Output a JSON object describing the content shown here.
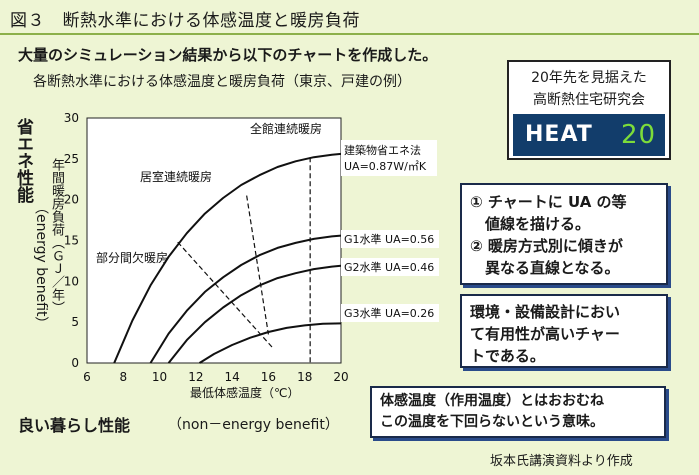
{
  "figure_title": "図３　断熱水準における体感温度と暖房負荷",
  "lead_text": "大量のシミュレーション結果から以下のチャートを作成した。",
  "chart_data": {
    "type": "line",
    "title": "各断熱水準における体感温度と暖房負荷（東京、戸建の例）",
    "xlabel": "最低体感温度（℃）",
    "ylabel": "年間暖房負荷（ＧＪ／年）",
    "xlim": [
      6,
      20
    ],
    "ylim": [
      0,
      30
    ],
    "x_ticks": [
      "6",
      "8",
      "10",
      "12",
      "14",
      "16",
      "18",
      "20"
    ],
    "y_ticks": [
      "0",
      "5",
      "10",
      "15",
      "20",
      "25",
      "30"
    ],
    "grid": false,
    "series": [
      {
        "name": "建築物省エネ法 Uᴀ=0.87W/㎡K",
        "x": [
          7.5,
          8.5,
          9.5,
          10.5,
          11.5,
          12.5,
          13.5,
          14.5,
          15.5,
          16.5,
          17.5,
          18.5,
          19.5,
          20
        ],
        "y": [
          0,
          5.2,
          9.5,
          13.0,
          15.9,
          18.3,
          20.2,
          21.8,
          23.0,
          24.0,
          24.7,
          25.2,
          25.5,
          25.6
        ]
      },
      {
        "name": "G1水準 Uᴀ=0.56",
        "x": [
          9.5,
          10.5,
          11.5,
          12.5,
          13.5,
          14.5,
          15.5,
          16.5,
          17.5,
          18.5,
          19.5,
          20
        ],
        "y": [
          0,
          3.6,
          6.4,
          8.7,
          10.5,
          12.0,
          13.2,
          14.1,
          14.7,
          15.2,
          15.5,
          15.6
        ]
      },
      {
        "name": "G2水準 Uᴀ=0.46",
        "x": [
          10.5,
          11.5,
          12.5,
          13.5,
          14.5,
          15.5,
          16.5,
          17.5,
          18.5,
          19.5,
          20
        ],
        "y": [
          0,
          2.8,
          5.0,
          6.8,
          8.3,
          9.5,
          10.4,
          11.0,
          11.5,
          11.8,
          11.9
        ]
      },
      {
        "name": "G3水準 Uᴀ=0.26",
        "x": [
          12.2,
          13.0,
          14.0,
          15.0,
          16.0,
          17.0,
          18.0,
          19.0,
          20
        ],
        "y": [
          0,
          1.1,
          2.2,
          3.1,
          3.8,
          4.3,
          4.6,
          4.8,
          4.85
        ]
      }
    ],
    "guide_lines": [
      {
        "label": "部分間欠暖房",
        "x": [
          11.0,
          16.3
        ],
        "y": [
          14.8,
          1.7
        ]
      },
      {
        "label": "居室連続暖房",
        "x": [
          14.8,
          16.0
        ],
        "y": [
          20.5,
          3.5
        ]
      },
      {
        "label": "全館連続暖房",
        "x": [
          18.3,
          18.3
        ],
        "y": [
          25.2,
          0
        ]
      }
    ],
    "series_label_text": {
      "s0_line1": "建築物省エネ法",
      "s0_line2": "UA=0.87W/㎡K",
      "s1": "G1水準 UA=0.56",
      "s2": "G2水準 UA=0.46",
      "s3": "G3水準 UA=0.26"
    },
    "colors": {
      "series": "#111111",
      "guide": "#111111",
      "plot_bg": "#ffffff"
    }
  },
  "y_title_main": "省エネ性能",
  "y_title_en": "（energy benefit）",
  "x_title_main": "良い暮らし性能",
  "x_title_en": "（non－energy benefit）",
  "heat_logo": {
    "line1": "20年先を見据えた",
    "line2": "高断熱住宅研究会",
    "word": "HEAT",
    "number": "20",
    "colors": {
      "band": "#123d6b",
      "number": "#7ddc3a"
    }
  },
  "callouts": {
    "c1_line1": "① チャートに UA の等",
    "c1_line2": "　値線を描ける。",
    "c1_line3": "② 暖房方式別に傾きが",
    "c1_line4": "　異なる直線となる。",
    "c2_line1": "環境・設備設計におい",
    "c2_line2": "て有用性が高いチャー",
    "c2_line3": "トである。",
    "c3_line1": "体感温度（作用温度）とはおおむね",
    "c3_line2": "この温度を下回らないという意味。"
  },
  "credit": "坂本氏講演資料より作成",
  "accent_color": "#8cb04a"
}
